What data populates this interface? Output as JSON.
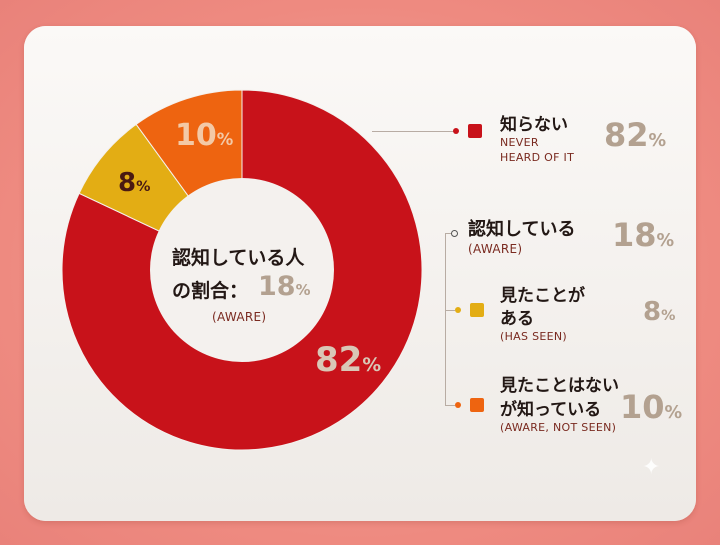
{
  "chart_data": {
    "type": "donut",
    "slices": [
      {
        "label": "知らない",
        "sublabel": "NEVER HEARD OF IT",
        "value": 82,
        "color": "#c8121a"
      },
      {
        "label": "見たことがある",
        "sublabel": "(HAS SEEN)",
        "value": 8,
        "color": "#e3ad14"
      },
      {
        "label": "見たことはないが知っている",
        "sublabel": "(AWARE, NOT SEEN)",
        "value": 10,
        "color": "#ee6410"
      }
    ],
    "aware_group": {
      "label": "認知している",
      "sublabel": "(AWARE)",
      "value": 18
    },
    "center": {
      "line1": "認知している人",
      "line2": "の割合：",
      "value": "18",
      "unit": "%",
      "sub": "(AWARE)"
    },
    "slice_labels": {
      "big": "82",
      "small1": "8",
      "small2": "10",
      "unit": "%"
    }
  },
  "legend": {
    "never": {
      "label": "知らない",
      "sub1": "NEVER",
      "sub2": "HEARD OF IT",
      "value": "82",
      "unit": "%"
    },
    "aware": {
      "label": "認知している",
      "sub": "(AWARE)",
      "value": "18",
      "unit": "%"
    },
    "seen": {
      "label1": "見たことが",
      "label2": "ある",
      "sub": "(HAS SEEN)",
      "value": "8",
      "unit": "%"
    },
    "notseen": {
      "label1": "見たことはない",
      "label2": "が知っている",
      "sub": "(AWARE, NOT SEEN)",
      "value": "10",
      "unit": "%"
    }
  },
  "colors": {
    "red": "#c8121a",
    "yellow": "#e3ad14",
    "orange": "#ee6410",
    "muted": "#b3a190"
  }
}
